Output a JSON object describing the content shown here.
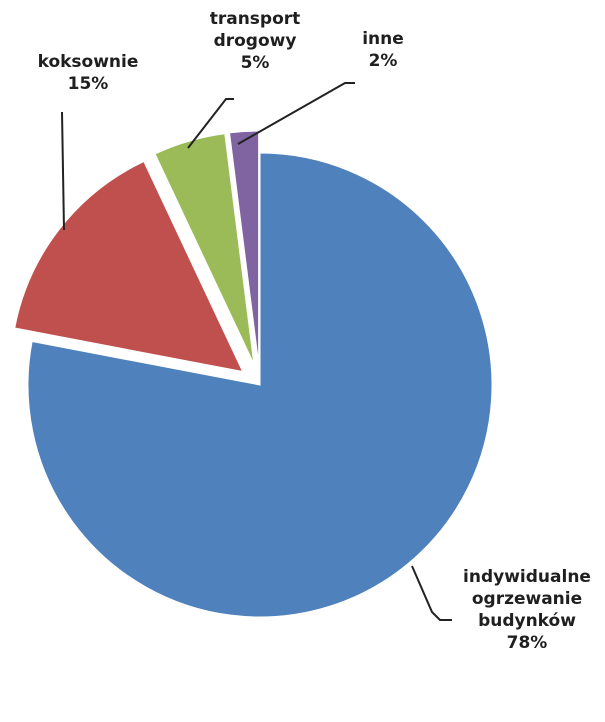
{
  "chart_data": {
    "type": "pie",
    "slices": [
      {
        "id": "indywidualne",
        "label_lines": [
          "indywidualne",
          "ogrzewanie",
          "budynków",
          "78%"
        ],
        "value": 78,
        "color": "#4F81BD",
        "exploded": false
      },
      {
        "id": "koksownie",
        "label_lines": [
          "koksownie",
          "15%"
        ],
        "value": 15,
        "color": "#C0504D",
        "exploded": true
      },
      {
        "id": "transport",
        "label_lines": [
          "transport",
          "drogowy",
          "5%"
        ],
        "value": 5,
        "color": "#9BBB59",
        "exploded": true
      },
      {
        "id": "inne",
        "label_lines": [
          "inne",
          "2%"
        ],
        "value": 2,
        "color": "#8064A2",
        "exploded": true
      }
    ]
  }
}
